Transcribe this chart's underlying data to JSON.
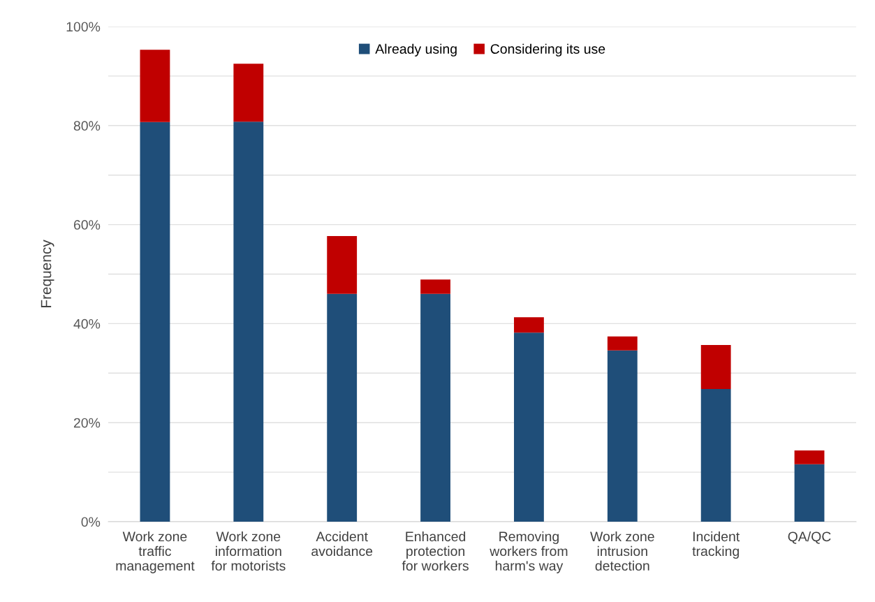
{
  "chart_data": {
    "type": "bar",
    "stacked": true,
    "ylabel": "Frequency",
    "categories": [
      "Work zone\ntraffic\nmanagement",
      "Work zone\ninformation\nfor motorists",
      "Accident\navoidance",
      "Enhanced\nprotection\nfor workers",
      "Removing\nworkers from\nharm's way",
      "Work zone\nintrusion\ndetection",
      "Incident\ntracking",
      "QA/QC"
    ],
    "series": [
      {
        "name": "Already using",
        "color": "#1f4e79",
        "values": [
          80.7,
          80.8,
          46.0,
          46.0,
          38.2,
          34.6,
          26.8,
          11.6
        ]
      },
      {
        "name": "Considering its use",
        "color": "#c00000",
        "values": [
          14.6,
          11.7,
          11.7,
          2.9,
          3.1,
          2.8,
          8.9,
          2.8
        ]
      }
    ],
    "ylim": [
      0,
      100
    ],
    "yticks": [
      {
        "value": 0,
        "label": "0%"
      },
      {
        "value": 10,
        "label": null
      },
      {
        "value": 20,
        "label": "20%"
      },
      {
        "value": 30,
        "label": null
      },
      {
        "value": 40,
        "label": "40%"
      },
      {
        "value": 50,
        "label": null
      },
      {
        "value": 60,
        "label": "60%"
      },
      {
        "value": 70,
        "label": null
      },
      {
        "value": 80,
        "label": "80%"
      },
      {
        "value": 90,
        "label": null
      },
      {
        "value": 100,
        "label": "100%"
      }
    ],
    "grid": "y",
    "legend": "top"
  }
}
